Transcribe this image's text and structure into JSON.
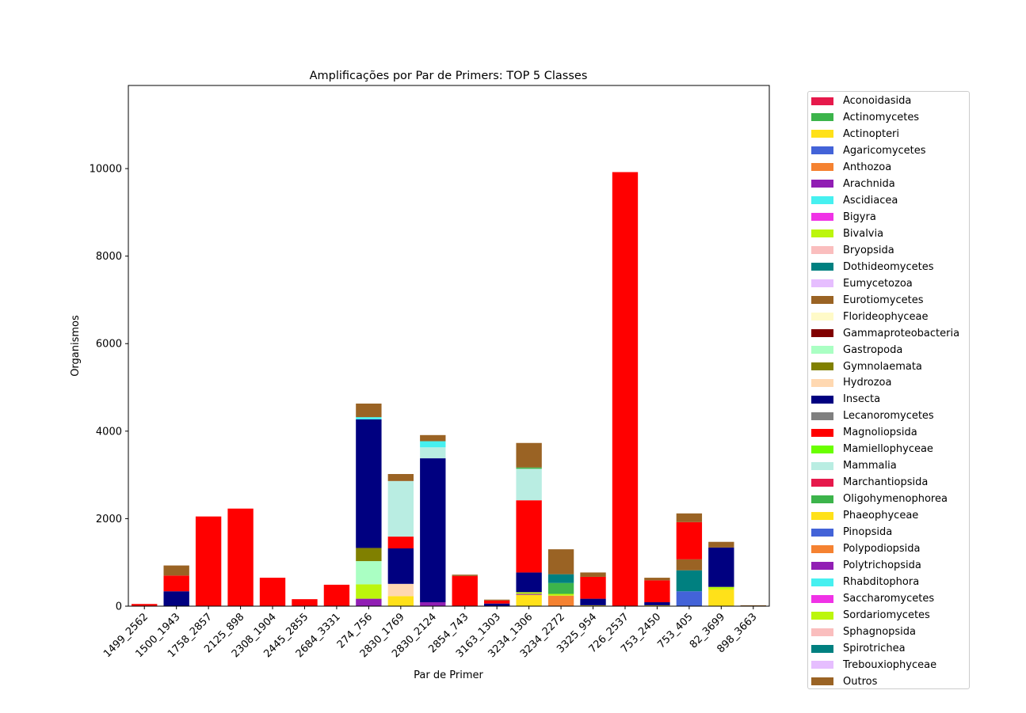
{
  "chart_data": {
    "type": "bar",
    "stacked": true,
    "title": "Amplificações por Par de Primers: TOP 5 Classes",
    "xlabel": "Par de Primer",
    "ylabel": "Organismos",
    "ylim": [
      0,
      11900
    ],
    "yticks": [
      0,
      2000,
      4000,
      6000,
      8000,
      10000
    ],
    "grid": false,
    "legend_position": "outside-right",
    "categories": [
      "1499_2562",
      "1500_1943",
      "1758_2857",
      "2125_898",
      "2308_1904",
      "2445_2855",
      "2684_3331",
      "274_756",
      "2830_1769",
      "2830_2124",
      "2854_743",
      "3163_1303",
      "3234_1306",
      "3234_2272",
      "3325_954",
      "726_2537",
      "753_2450",
      "753_405",
      "82_3699",
      "898_3663"
    ],
    "series": [
      {
        "name": "Aconoidasida",
        "color": "#e6194b",
        "values": [
          0,
          0,
          0,
          0,
          0,
          0,
          0,
          0,
          0,
          0,
          0,
          0,
          0,
          0,
          0,
          0,
          0,
          0,
          0,
          0
        ]
      },
      {
        "name": "Actinomycetes",
        "color": "#3cb44b",
        "values": [
          0,
          0,
          0,
          0,
          0,
          0,
          0,
          0,
          0,
          0,
          0,
          0,
          0,
          0,
          0,
          0,
          0,
          0,
          0,
          0
        ]
      },
      {
        "name": "Actinopteri",
        "color": "#ffe119",
        "values": [
          0,
          0,
          0,
          0,
          0,
          0,
          0,
          0,
          230,
          0,
          0,
          0,
          260,
          0,
          20,
          0,
          20,
          0,
          380,
          0
        ]
      },
      {
        "name": "Agaricomycetes",
        "color": "#4363d8",
        "values": [
          0,
          0,
          0,
          0,
          0,
          0,
          0,
          0,
          0,
          0,
          0,
          0,
          0,
          0,
          0,
          0,
          0,
          340,
          0,
          0
        ]
      },
      {
        "name": "Anthozoa",
        "color": "#f58231",
        "values": [
          0,
          0,
          0,
          0,
          0,
          0,
          0,
          0,
          0,
          0,
          0,
          0,
          0,
          240,
          0,
          0,
          0,
          0,
          0,
          0
        ]
      },
      {
        "name": "Arachnida",
        "color": "#911eb4",
        "values": [
          0,
          0,
          0,
          0,
          0,
          0,
          0,
          170,
          0,
          90,
          0,
          0,
          20,
          0,
          0,
          0,
          0,
          0,
          0,
          0
        ]
      },
      {
        "name": "Ascidiacea",
        "color": "#46f0f0",
        "values": [
          0,
          0,
          0,
          0,
          0,
          0,
          0,
          0,
          0,
          0,
          0,
          0,
          0,
          0,
          0,
          0,
          0,
          0,
          0,
          0
        ]
      },
      {
        "name": "Bigyra",
        "color": "#f032e6",
        "values": [
          0,
          0,
          0,
          0,
          0,
          0,
          0,
          0,
          0,
          0,
          0,
          0,
          0,
          0,
          0,
          0,
          0,
          0,
          0,
          0
        ]
      },
      {
        "name": "Bivalvia",
        "color": "#bcf60c",
        "values": [
          0,
          0,
          0,
          0,
          0,
          0,
          0,
          330,
          0,
          0,
          0,
          0,
          40,
          40,
          0,
          0,
          0,
          0,
          60,
          0
        ]
      },
      {
        "name": "Bryopsida",
        "color": "#fabebe",
        "values": [
          0,
          0,
          0,
          0,
          0,
          0,
          0,
          0,
          0,
          0,
          0,
          0,
          0,
          0,
          0,
          0,
          0,
          0,
          0,
          0
        ]
      },
      {
        "name": "Dothideomycetes",
        "color": "#008080",
        "values": [
          0,
          0,
          0,
          0,
          0,
          0,
          0,
          0,
          0,
          0,
          0,
          0,
          0,
          0,
          0,
          0,
          0,
          480,
          0,
          0
        ]
      },
      {
        "name": "Eumycetozoa",
        "color": "#e6beff",
        "values": [
          0,
          0,
          0,
          0,
          0,
          0,
          0,
          0,
          0,
          0,
          0,
          0,
          0,
          0,
          0,
          0,
          0,
          0,
          0,
          0
        ]
      },
      {
        "name": "Eurotiomycetes",
        "color": "#9a6324",
        "values": [
          0,
          0,
          0,
          0,
          0,
          0,
          0,
          0,
          0,
          0,
          0,
          0,
          0,
          0,
          0,
          0,
          0,
          250,
          0,
          0
        ]
      },
      {
        "name": "Florideophyceae",
        "color": "#fffac8",
        "values": [
          0,
          0,
          0,
          0,
          0,
          0,
          0,
          0,
          0,
          0,
          0,
          0,
          0,
          0,
          0,
          0,
          0,
          0,
          0,
          0
        ]
      },
      {
        "name": "Gammaproteobacteria",
        "color": "#800000",
        "values": [
          0,
          0,
          0,
          0,
          0,
          0,
          0,
          0,
          0,
          0,
          0,
          0,
          0,
          0,
          0,
          0,
          0,
          0,
          0,
          0
        ]
      },
      {
        "name": "Gastropoda",
        "color": "#aaffc3",
        "values": [
          0,
          0,
          0,
          0,
          0,
          0,
          0,
          530,
          0,
          0,
          0,
          0,
          0,
          0,
          0,
          0,
          0,
          0,
          0,
          0
        ]
      },
      {
        "name": "Gymnolaemata",
        "color": "#808000",
        "values": [
          0,
          0,
          0,
          0,
          0,
          0,
          0,
          300,
          0,
          0,
          0,
          0,
          0,
          0,
          0,
          0,
          0,
          0,
          0,
          0
        ]
      },
      {
        "name": "Hydrozoa",
        "color": "#ffd8b1",
        "values": [
          0,
          0,
          0,
          0,
          0,
          0,
          0,
          0,
          280,
          0,
          0,
          0,
          0,
          0,
          0,
          0,
          0,
          0,
          0,
          0
        ]
      },
      {
        "name": "Insecta",
        "color": "#000080",
        "values": [
          0,
          340,
          0,
          0,
          0,
          0,
          0,
          2940,
          810,
          3290,
          0,
          60,
          450,
          0,
          150,
          0,
          70,
          0,
          900,
          0
        ]
      },
      {
        "name": "Lecanoromycetes",
        "color": "#808080",
        "values": [
          0,
          0,
          0,
          0,
          0,
          0,
          0,
          0,
          0,
          0,
          0,
          0,
          0,
          0,
          0,
          0,
          0,
          0,
          0,
          0
        ]
      },
      {
        "name": "Magnoliopsida",
        "color": "#ff0000",
        "values": [
          50,
          360,
          2050,
          2230,
          650,
          160,
          490,
          0,
          270,
          0,
          690,
          70,
          1650,
          0,
          500,
          9920,
          500,
          850,
          0,
          0
        ]
      },
      {
        "name": "Mamiellophyceae",
        "color": "#6aff00",
        "values": [
          0,
          0,
          0,
          0,
          0,
          0,
          0,
          0,
          0,
          0,
          0,
          0,
          0,
          0,
          0,
          0,
          0,
          0,
          0,
          0
        ]
      },
      {
        "name": "Mammalia",
        "color": "#b9ede2",
        "values": [
          0,
          0,
          0,
          0,
          0,
          0,
          0,
          0,
          1270,
          250,
          0,
          0,
          720,
          0,
          0,
          0,
          0,
          0,
          0,
          0
        ]
      },
      {
        "name": "Marchantiopsida",
        "color": "#e6194b",
        "values": [
          0,
          0,
          0,
          0,
          0,
          0,
          0,
          0,
          0,
          0,
          0,
          0,
          0,
          0,
          0,
          0,
          0,
          0,
          0,
          0
        ]
      },
      {
        "name": "Oligohymenophorea",
        "color": "#3cb44b",
        "values": [
          0,
          0,
          0,
          0,
          0,
          0,
          0,
          0,
          0,
          0,
          0,
          0,
          30,
          250,
          0,
          0,
          0,
          0,
          0,
          0
        ]
      },
      {
        "name": "Phaeophyceae",
        "color": "#ffe119",
        "values": [
          0,
          0,
          0,
          0,
          0,
          0,
          0,
          0,
          0,
          0,
          0,
          0,
          0,
          0,
          0,
          0,
          0,
          0,
          0,
          0
        ]
      },
      {
        "name": "Pinopsida",
        "color": "#4363d8",
        "values": [
          0,
          0,
          0,
          0,
          0,
          0,
          0,
          0,
          0,
          0,
          0,
          0,
          0,
          0,
          0,
          0,
          0,
          0,
          0,
          0
        ]
      },
      {
        "name": "Polypodiopsida",
        "color": "#f58231",
        "values": [
          0,
          0,
          0,
          0,
          0,
          0,
          0,
          0,
          0,
          0,
          0,
          0,
          0,
          0,
          0,
          0,
          0,
          0,
          0,
          0
        ]
      },
      {
        "name": "Polytrichopsida",
        "color": "#911eb4",
        "values": [
          0,
          0,
          0,
          0,
          0,
          0,
          0,
          0,
          0,
          0,
          0,
          0,
          0,
          0,
          0,
          0,
          0,
          0,
          0,
          0
        ]
      },
      {
        "name": "Rhabditophora",
        "color": "#46f0f0",
        "values": [
          0,
          0,
          0,
          0,
          0,
          0,
          0,
          50,
          0,
          140,
          0,
          0,
          0,
          0,
          0,
          0,
          0,
          0,
          0,
          0
        ]
      },
      {
        "name": "Saccharomycetes",
        "color": "#f032e6",
        "values": [
          0,
          0,
          0,
          0,
          0,
          0,
          0,
          0,
          0,
          0,
          0,
          0,
          0,
          0,
          0,
          0,
          0,
          0,
          0,
          0
        ]
      },
      {
        "name": "Sordariomycetes",
        "color": "#bcf60c",
        "values": [
          0,
          0,
          0,
          0,
          0,
          0,
          0,
          0,
          0,
          0,
          0,
          0,
          0,
          0,
          0,
          0,
          0,
          0,
          0,
          0
        ]
      },
      {
        "name": "Sphagnopsida",
        "color": "#fabebe",
        "values": [
          0,
          0,
          0,
          0,
          0,
          0,
          0,
          0,
          0,
          0,
          0,
          0,
          0,
          0,
          0,
          0,
          0,
          0,
          0,
          0
        ]
      },
      {
        "name": "Spirotrichea",
        "color": "#008080",
        "values": [
          0,
          0,
          0,
          0,
          0,
          0,
          0,
          0,
          0,
          0,
          0,
          0,
          0,
          200,
          0,
          0,
          0,
          0,
          0,
          0
        ]
      },
      {
        "name": "Trebouxiophyceae",
        "color": "#e6beff",
        "values": [
          0,
          0,
          0,
          0,
          0,
          0,
          0,
          0,
          0,
          0,
          0,
          0,
          0,
          0,
          0,
          0,
          0,
          0,
          0,
          0
        ]
      },
      {
        "name": "Outros",
        "color": "#9a6324",
        "values": [
          0,
          230,
          0,
          0,
          0,
          0,
          0,
          310,
          160,
          140,
          30,
          20,
          560,
          570,
          100,
          0,
          60,
          200,
          130,
          20
        ]
      }
    ]
  }
}
